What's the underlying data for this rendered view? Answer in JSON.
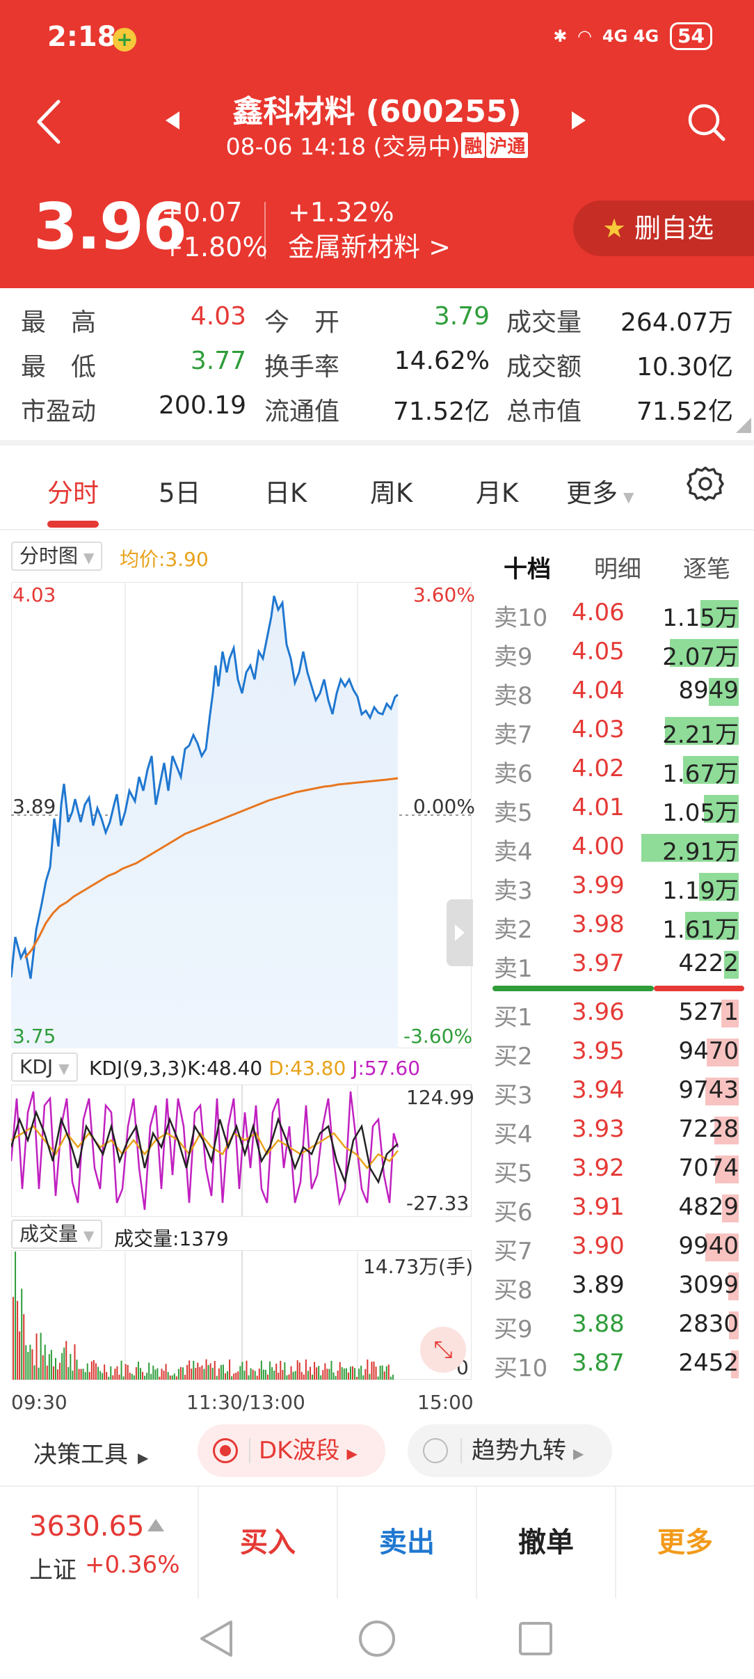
{
  "status_bar": {
    "time": "2:18",
    "network": "4G 4G",
    "battery": "54"
  },
  "header": {
    "title": "鑫科材料 (600255)",
    "datetime": "08-06 14:18 (交易中)",
    "tag_margin": "融",
    "tag_connect": "沪通",
    "price": "3.96",
    "change": "+0.07",
    "change_pct": "+1.80%",
    "sector_change": "+1.32%",
    "sector_name": "金属新材料  >",
    "favorite_label": "删自选"
  },
  "stats": {
    "high_label": "最　高",
    "high": "4.03",
    "open_label": "今　开",
    "open": "3.79",
    "volume_label": "成交量",
    "volume": "264.07万",
    "low_label": "最　低",
    "low": "3.77",
    "turnover_label": "换手率",
    "turnover": "14.62%",
    "amount_label": "成交额",
    "amount": "10.30亿",
    "pe_label": "市盈动",
    "pe": "200.19",
    "float_cap_label": "流通值",
    "float_cap": "71.52亿",
    "total_cap_label": "总市值",
    "total_cap": "71.52亿"
  },
  "tabs": [
    "分时",
    "5日",
    "日K",
    "周K",
    "月K",
    "更多"
  ],
  "chart": {
    "type_selector": "分时图",
    "avg_price": "均价:3.90",
    "price_top": "4.03",
    "pct_top": "3.60%",
    "price_mid": "3.89",
    "pct_mid": "0.00%",
    "price_bottom": "3.75",
    "pct_bottom": "-3.60%",
    "kdj_selector": "KDJ",
    "kdj_k": "KDJ(9,3,3)K:48.40",
    "kdj_d": "D:43.80",
    "kdj_j": "J:57.60",
    "kdj_max": "124.99",
    "kdj_min": "-27.33",
    "vol_selector": "成交量",
    "vol_current": "成交量:1379",
    "vol_max": "14.73万(手)",
    "vol_min": "0",
    "time_start": "09:30",
    "time_mid": "11:30/13:00",
    "time_end": "15:00"
  },
  "chart_data": {
    "type": "line",
    "x_range": [
      "09:30",
      "15:00"
    ],
    "ylim": [
      3.75,
      4.03
    ],
    "prev_close": 3.89,
    "avg_price": 3.9,
    "series": [
      {
        "name": "均价",
        "color": "#e8a21a"
      }
    ]
  },
  "orderbook": {
    "tabs": [
      "十档",
      "明细",
      "逐笔"
    ],
    "asks": [
      {
        "name": "卖10",
        "price": "4.06",
        "qty": "1.15万",
        "fill": 0.39
      },
      {
        "name": "卖9",
        "price": "4.05",
        "qty": "2.07万",
        "fill": 0.71
      },
      {
        "name": "卖8",
        "price": "4.04",
        "qty": "8949",
        "fill": 0.31
      },
      {
        "name": "卖7",
        "price": "4.03",
        "qty": "2.21万",
        "fill": 0.76
      },
      {
        "name": "卖6",
        "price": "4.02",
        "qty": "1.67万",
        "fill": 0.57
      },
      {
        "name": "卖5",
        "price": "4.01",
        "qty": "1.05万",
        "fill": 0.36
      },
      {
        "name": "卖4",
        "price": "4.00",
        "qty": "2.91万",
        "fill": 1.0
      },
      {
        "name": "卖3",
        "price": "3.99",
        "qty": "1.19万",
        "fill": 0.41
      },
      {
        "name": "卖2",
        "price": "3.98",
        "qty": "1.61万",
        "fill": 0.55
      },
      {
        "name": "卖1",
        "price": "3.97",
        "qty": "4222",
        "fill": 0.15
      }
    ],
    "bids": [
      {
        "name": "买1",
        "price": "3.96",
        "qty": "5271",
        "fill": 0.18,
        "trend": "up"
      },
      {
        "name": "买2",
        "price": "3.95",
        "qty": "9470",
        "fill": 0.33,
        "trend": "up"
      },
      {
        "name": "买3",
        "price": "3.94",
        "qty": "9743",
        "fill": 0.34,
        "trend": "up"
      },
      {
        "name": "买4",
        "price": "3.93",
        "qty": "7228",
        "fill": 0.25,
        "trend": "up"
      },
      {
        "name": "买5",
        "price": "3.92",
        "qty": "7074",
        "fill": 0.24,
        "trend": "up"
      },
      {
        "name": "买6",
        "price": "3.91",
        "qty": "4829",
        "fill": 0.17,
        "trend": "up"
      },
      {
        "name": "买7",
        "price": "3.90",
        "qty": "9940",
        "fill": 0.34,
        "trend": "up"
      },
      {
        "name": "买8",
        "price": "3.89",
        "qty": "3099",
        "fill": 0.11,
        "trend": "flat"
      },
      {
        "name": "买9",
        "price": "3.88",
        "qty": "2830",
        "fill": 0.1,
        "trend": "down"
      },
      {
        "name": "买10",
        "price": "3.87",
        "qty": "2452",
        "fill": 0.08,
        "trend": "down"
      }
    ],
    "ask_bid_ratio": 0.64
  },
  "tools": {
    "label": "决策工具",
    "dk": "DK波段",
    "trend": "趋势九转"
  },
  "tradebar": {
    "index_value": "3630.65",
    "index_name": "上证",
    "index_change": "+0.36%",
    "buy": "买入",
    "sell": "卖出",
    "cancel": "撤单",
    "more": "更多"
  },
  "colors": {
    "up": "#e53935",
    "down": "#2e9d3a",
    "header_bg": "#e8372f",
    "price_line": "#1f77d0",
    "avg_line": "#e8761f"
  }
}
